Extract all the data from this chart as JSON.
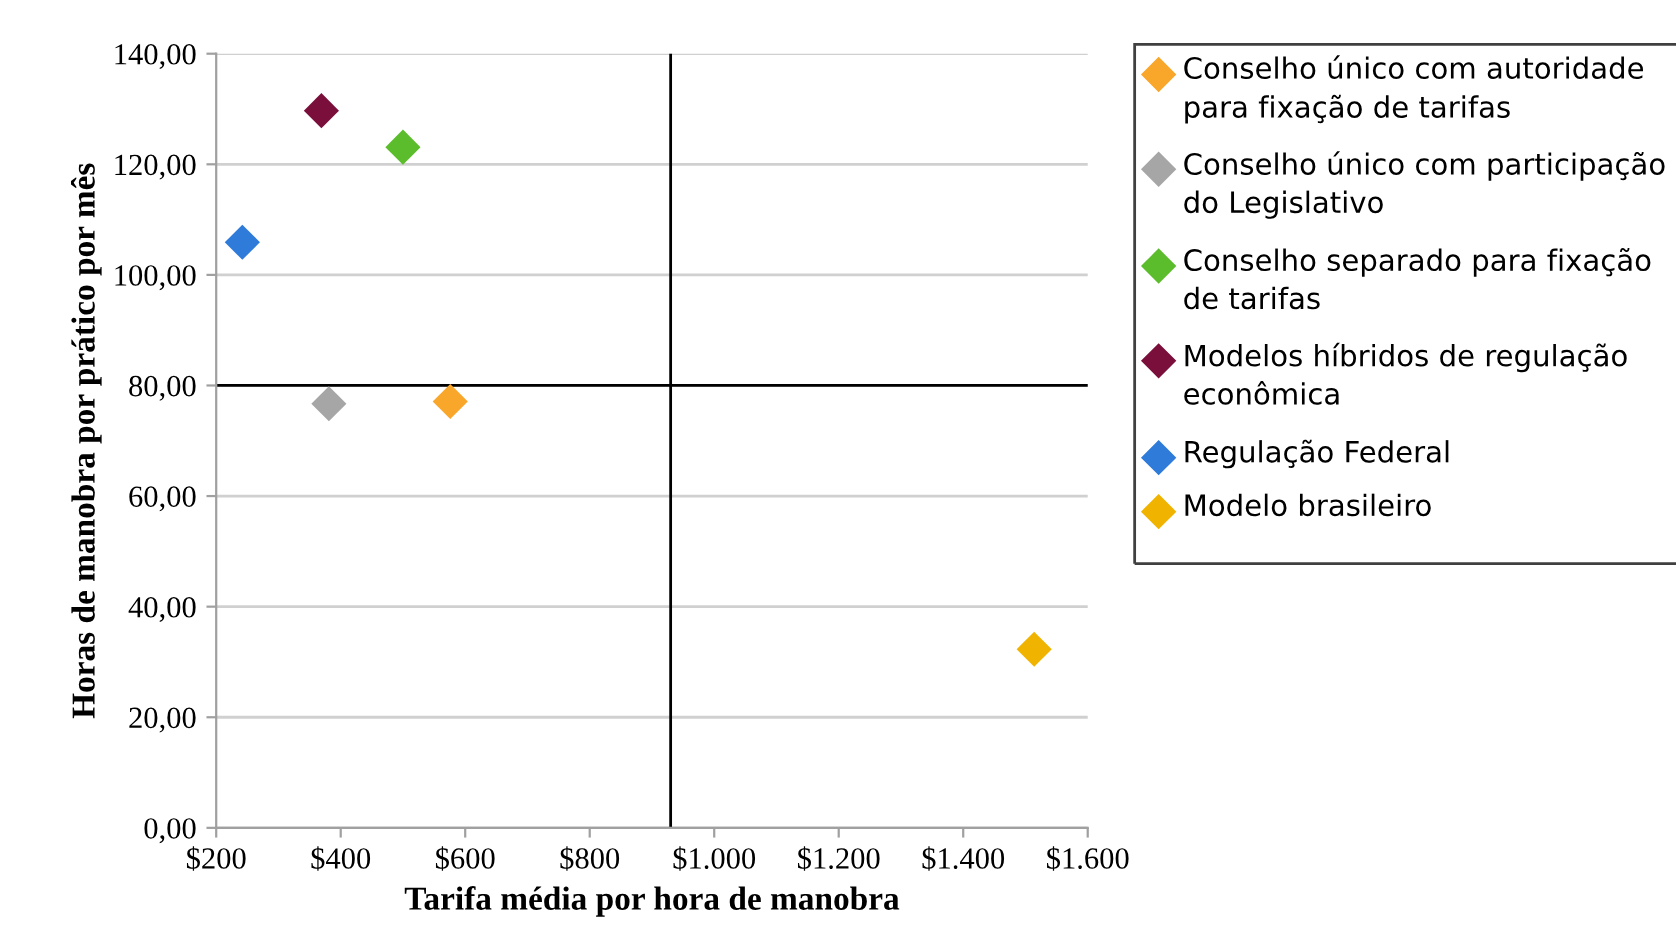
{
  "chart_data": {
    "type": "scatter",
    "xlabel": "Tarifa média por hora de manobra",
    "ylabel": "Horas de manobra por prático por mês",
    "series": [
      {
        "name": "Conselho único com autoridade para fixação de tarifas",
        "color": "#f9a72b",
        "x": [
          576
        ],
        "values": [
          77.1
        ]
      },
      {
        "name": "Conselho único com participação do Legislativo",
        "color": "#a6a6a6",
        "x": [
          381
        ],
        "values": [
          76.7
        ]
      },
      {
        "name": "Conselho separado para fixação de tarifas",
        "color": "#5bbd2b",
        "x": [
          500
        ],
        "values": [
          123.1
        ]
      },
      {
        "name": "Modelos híbridos de regulação econômica",
        "color": "#7a0f3c",
        "x": [
          369
        ],
        "values": [
          129.7
        ]
      },
      {
        "name": "Regulação Federal",
        "color": "#2e7bd9",
        "x": [
          242
        ],
        "values": [
          105.9
        ]
      },
      {
        "name": "Modelo brasileiro",
        "color": "#f0b400",
        "x": [
          1514
        ],
        "values": [
          32.3
        ]
      }
    ],
    "xlim": [
      200,
      1600
    ],
    "xticks": [
      {
        "value": 200,
        "label": "$200"
      },
      {
        "value": 400,
        "label": "$400"
      },
      {
        "value": 600,
        "label": "$600"
      },
      {
        "value": 800,
        "label": "$800"
      },
      {
        "value": 1000,
        "label": "$1.000"
      },
      {
        "value": 1200,
        "label": "$1.200"
      },
      {
        "value": 1400,
        "label": "$1.400"
      },
      {
        "value": 1600,
        "label": "$1.600"
      }
    ],
    "ylim": [
      0,
      140
    ],
    "yticks": [
      {
        "value": 0,
        "label": "0,00"
      },
      {
        "value": 20,
        "label": "20,00"
      },
      {
        "value": 40,
        "label": "40,00"
      },
      {
        "value": 60,
        "label": "60,00"
      },
      {
        "value": 80,
        "label": "80,00"
      },
      {
        "value": 100,
        "label": "100,00"
      },
      {
        "value": 120,
        "label": "120,00"
      },
      {
        "value": 140,
        "label": "140,00"
      }
    ],
    "ref_lines": [
      {
        "axis": "x",
        "value": 930,
        "label": null,
        "color": "#000000"
      },
      {
        "axis": "y",
        "value": 80,
        "label": null,
        "color": "#000000"
      }
    ],
    "grid": "y",
    "legend": "right",
    "marker": "diamond"
  }
}
